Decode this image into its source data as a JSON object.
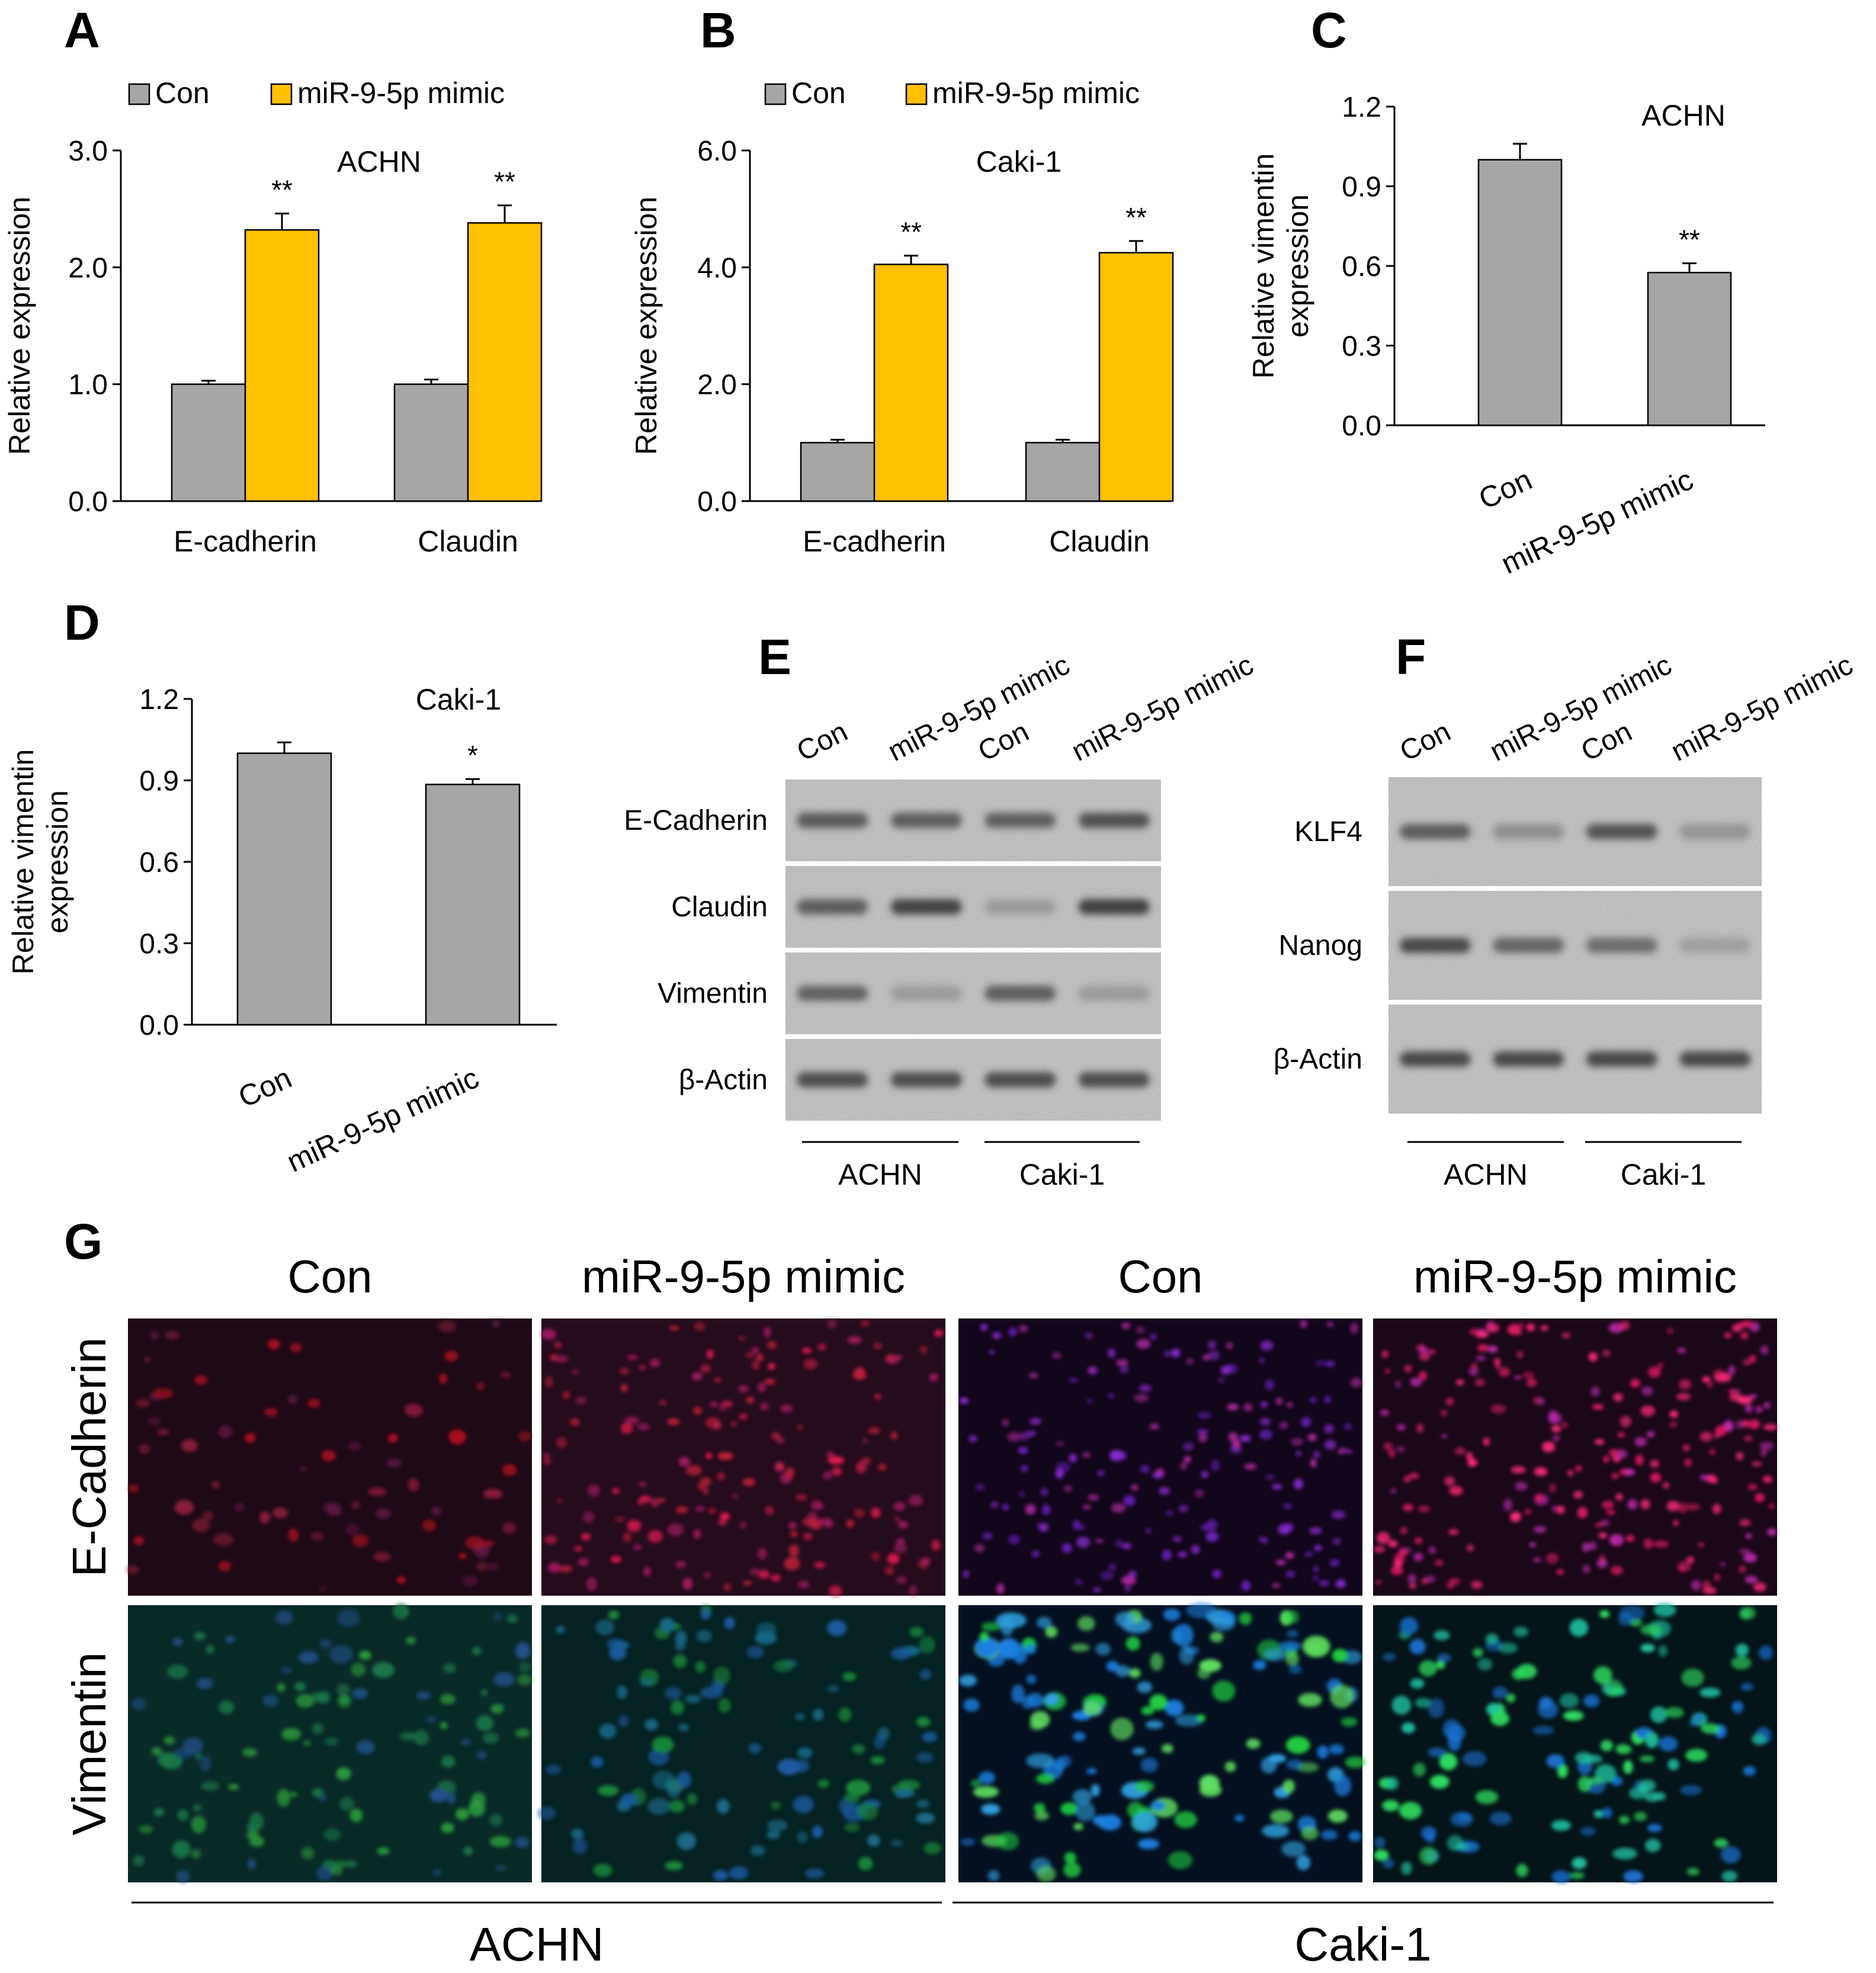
{
  "panel_letters": [
    "A",
    "B",
    "C",
    "D",
    "E",
    "F",
    "G"
  ],
  "colors": {
    "con": "#a6a6a6",
    "mimic": "#ffc000",
    "axis": "#000000",
    "blot_bg": "#c9c9c9",
    "band": "#3a3a3a"
  },
  "chart_data": [
    {
      "panel": "A",
      "type": "bar",
      "title": "ACHN",
      "ylabel": "Relative expression",
      "xlabel": "",
      "ylim": [
        0,
        3
      ],
      "yticks": [
        "0.0",
        "1.0",
        "2.0",
        "3.0"
      ],
      "categories": [
        "E-cadherin",
        "Claudin"
      ],
      "legend": [
        "Con",
        "miR-9-5p mimic"
      ],
      "legend_position": "top",
      "grid": false,
      "series": [
        {
          "name": "Con",
          "values": [
            1.0,
            1.0
          ],
          "errors": [
            0.03,
            0.04
          ],
          "sig": [
            "",
            ""
          ]
        },
        {
          "name": "miR-9-5p mimic",
          "values": [
            2.32,
            2.38
          ],
          "errors": [
            0.14,
            0.15
          ],
          "sig": [
            "**",
            "**"
          ]
        }
      ]
    },
    {
      "panel": "B",
      "type": "bar",
      "title": "Caki-1",
      "ylabel": "Relative expression",
      "xlabel": "",
      "ylim": [
        0,
        6
      ],
      "yticks": [
        "0.0",
        "2.0",
        "4.0",
        "6.0"
      ],
      "categories": [
        "E-cadherin",
        "Claudin"
      ],
      "legend": [
        "Con",
        "miR-9-5p mimic"
      ],
      "legend_position": "top",
      "grid": false,
      "series": [
        {
          "name": "Con",
          "values": [
            1.0,
            1.0
          ],
          "errors": [
            0.05,
            0.05
          ],
          "sig": [
            "",
            ""
          ]
        },
        {
          "name": "miR-9-5p mimic",
          "values": [
            4.05,
            4.25
          ],
          "errors": [
            0.15,
            0.2
          ],
          "sig": [
            "**",
            "**"
          ]
        }
      ]
    },
    {
      "panel": "C",
      "type": "bar",
      "title": "ACHN",
      "ylabel": "Relative vimentin expression",
      "ylabel_lines": [
        "Relative vimentin",
        "expression"
      ],
      "xlabel": "",
      "ylim": [
        0,
        1.2
      ],
      "yticks": [
        "0.0",
        "0.3",
        "0.6",
        "0.9",
        "1.2"
      ],
      "categories": [
        "Con",
        "miR-9-5p mimic"
      ],
      "grid": false,
      "values": [
        1.0,
        0.575
      ],
      "errors": [
        0.06,
        0.035
      ],
      "sig": [
        "",
        "**"
      ]
    },
    {
      "panel": "D",
      "type": "bar",
      "title": "Caki-1",
      "ylabel": "Relative vimentin expression",
      "ylabel_lines": [
        "Relative vimentin",
        "expression"
      ],
      "xlabel": "",
      "ylim": [
        0,
        1.2
      ],
      "yticks": [
        "0.0",
        "0.3",
        "0.6",
        "0.9",
        "1.2"
      ],
      "categories": [
        "Con",
        "miR-9-5p mimic"
      ],
      "grid": false,
      "values": [
        1.0,
        0.885
      ],
      "errors": [
        0.04,
        0.02
      ],
      "sig": [
        "",
        "*"
      ]
    }
  ],
  "blot_E": {
    "lanes": [
      "Con",
      "miR-9-5p mimic",
      "Con",
      "miR-9-5p mimic"
    ],
    "rows": [
      {
        "label": "E-Cadherin",
        "intensity": [
          0.75,
          0.72,
          0.7,
          0.82
        ]
      },
      {
        "label": "Claudin",
        "intensity": [
          0.72,
          0.92,
          0.25,
          0.95
        ]
      },
      {
        "label": "Vimentin",
        "intensity": [
          0.68,
          0.25,
          0.72,
          0.25
        ]
      },
      {
        "label": "β-Actin",
        "intensity": [
          0.85,
          0.85,
          0.85,
          0.85
        ]
      }
    ],
    "groups": [
      "ACHN",
      "Caki-1"
    ]
  },
  "blot_F": {
    "lanes": [
      "Con",
      "miR-9-5p mimic",
      "Con",
      "miR-9-5p mimic"
    ],
    "rows": [
      {
        "label": "KLF4",
        "intensity": [
          0.72,
          0.35,
          0.8,
          0.3
        ]
      },
      {
        "label": "Nanog",
        "intensity": [
          0.88,
          0.65,
          0.6,
          0.22
        ]
      },
      {
        "label": "β-Actin",
        "intensity": [
          0.88,
          0.88,
          0.88,
          0.88
        ]
      }
    ],
    "groups": [
      "ACHN",
      "Caki-1"
    ]
  },
  "micro_G": {
    "columns": [
      "Con",
      "miR-9-5p mimic",
      "Con",
      "miR-9-5p mimic"
    ],
    "rows": [
      "E-Cadherin",
      "Vimentin"
    ],
    "groups": [
      "ACHN",
      "Caki-1"
    ]
  }
}
